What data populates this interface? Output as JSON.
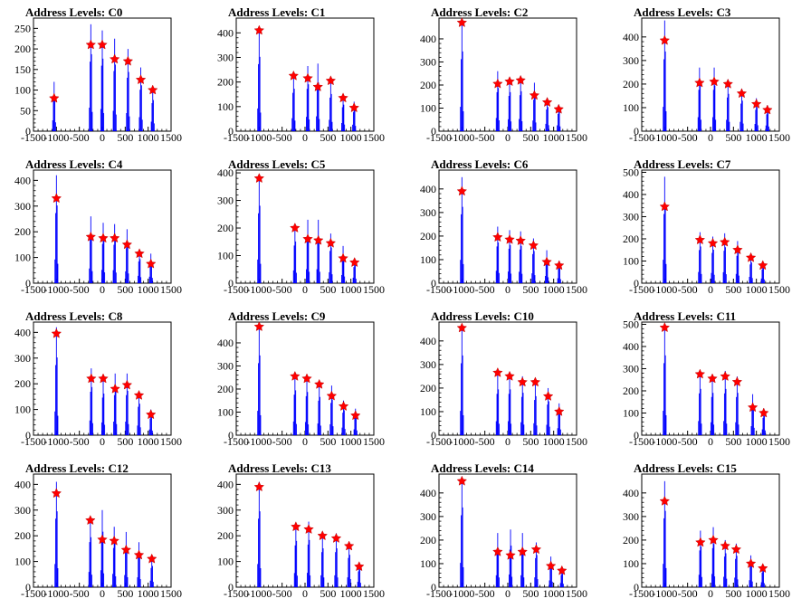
{
  "style": {
    "line_color": "#0000ff",
    "marker_color": "#ff0000",
    "frame_color": "#000000"
  },
  "chart_data": [
    {
      "type": "line",
      "title": "Address Levels: C0",
      "xlim": [
        -1500,
        1500
      ],
      "ylim": [
        0,
        275
      ],
      "xticks": [
        -1500,
        -1000,
        -500,
        0,
        500,
        1000,
        1500
      ],
      "yticks": [
        0,
        50,
        100,
        150,
        200,
        250
      ],
      "peaks": [
        {
          "x": -1050,
          "top": 120,
          "marker": 80
        },
        {
          "x": -250,
          "top": 260,
          "marker": 210
        },
        {
          "x": 0,
          "top": 245,
          "marker": 210
        },
        {
          "x": 270,
          "top": 225,
          "marker": 175
        },
        {
          "x": 560,
          "top": 200,
          "marker": 170
        },
        {
          "x": 840,
          "top": 155,
          "marker": 125
        },
        {
          "x": 1100,
          "top": 105,
          "marker": 100
        }
      ]
    },
    {
      "type": "line",
      "title": "Address Levels: C1",
      "xlim": [
        -1500,
        1500
      ],
      "ylim": [
        0,
        460
      ],
      "xticks": [
        -1500,
        -1000,
        -500,
        0,
        500,
        1000,
        1500
      ],
      "yticks": [
        0,
        100,
        200,
        300,
        400
      ],
      "peaks": [
        {
          "x": -1000,
          "top": 420,
          "marker": 410
        },
        {
          "x": -250,
          "top": 240,
          "marker": 225
        },
        {
          "x": 60,
          "top": 265,
          "marker": 215
        },
        {
          "x": 280,
          "top": 275,
          "marker": 180
        },
        {
          "x": 560,
          "top": 210,
          "marker": 205
        },
        {
          "x": 830,
          "top": 150,
          "marker": 135
        },
        {
          "x": 1070,
          "top": 120,
          "marker": 95
        }
      ]
    },
    {
      "type": "line",
      "title": "Address Levels: C2",
      "xlim": [
        -1500,
        1500
      ],
      "ylim": [
        0,
        490
      ],
      "xticks": [
        -1500,
        -1000,
        -500,
        0,
        500,
        1000,
        1500
      ],
      "yticks": [
        0,
        100,
        200,
        300,
        400
      ],
      "peaks": [
        {
          "x": -1000,
          "top": 480,
          "marker": 470
        },
        {
          "x": -220,
          "top": 260,
          "marker": 205
        },
        {
          "x": 40,
          "top": 235,
          "marker": 215
        },
        {
          "x": 280,
          "top": 240,
          "marker": 220
        },
        {
          "x": 580,
          "top": 210,
          "marker": 155
        },
        {
          "x": 860,
          "top": 145,
          "marker": 125
        },
        {
          "x": 1110,
          "top": 115,
          "marker": 95
        }
      ]
    },
    {
      "type": "line",
      "title": "Address Levels: C3",
      "xlim": [
        -1500,
        1500
      ],
      "ylim": [
        0,
        480
      ],
      "xticks": [
        -1500,
        -1000,
        -500,
        0,
        500,
        1000,
        1500
      ],
      "yticks": [
        0,
        100,
        200,
        300,
        400
      ],
      "peaks": [
        {
          "x": -1000,
          "top": 470,
          "marker": 385
        },
        {
          "x": -240,
          "top": 270,
          "marker": 205
        },
        {
          "x": 80,
          "top": 270,
          "marker": 210
        },
        {
          "x": 380,
          "top": 220,
          "marker": 200
        },
        {
          "x": 680,
          "top": 180,
          "marker": 160
        },
        {
          "x": 1000,
          "top": 140,
          "marker": 115
        },
        {
          "x": 1240,
          "top": 110,
          "marker": 90
        }
      ]
    },
    {
      "type": "line",
      "title": "Address Levels: C4",
      "xlim": [
        -1500,
        1500
      ],
      "ylim": [
        0,
        440
      ],
      "xticks": [
        -1500,
        -1000,
        -500,
        0,
        500,
        1000,
        1500
      ],
      "yticks": [
        0,
        100,
        200,
        300,
        400
      ],
      "peaks": [
        {
          "x": -1000,
          "top": 420,
          "marker": 330
        },
        {
          "x": -250,
          "top": 260,
          "marker": 180
        },
        {
          "x": 20,
          "top": 235,
          "marker": 175
        },
        {
          "x": 270,
          "top": 230,
          "marker": 175
        },
        {
          "x": 540,
          "top": 210,
          "marker": 150
        },
        {
          "x": 810,
          "top": 130,
          "marker": 115
        },
        {
          "x": 1060,
          "top": 115,
          "marker": 75
        }
      ]
    },
    {
      "type": "line",
      "title": "Address Levels: C5",
      "xlim": [
        -1500,
        1500
      ],
      "ylim": [
        0,
        410
      ],
      "xticks": [
        -1500,
        -1000,
        -500,
        0,
        500,
        1000,
        1500
      ],
      "yticks": [
        0,
        100,
        200,
        300,
        400
      ],
      "peaks": [
        {
          "x": -1000,
          "top": 390,
          "marker": 380
        },
        {
          "x": -220,
          "top": 210,
          "marker": 200
        },
        {
          "x": 60,
          "top": 230,
          "marker": 160
        },
        {
          "x": 290,
          "top": 230,
          "marker": 155
        },
        {
          "x": 560,
          "top": 180,
          "marker": 145
        },
        {
          "x": 830,
          "top": 135,
          "marker": 90
        },
        {
          "x": 1080,
          "top": 90,
          "marker": 75
        }
      ]
    },
    {
      "type": "line",
      "title": "Address Levels: C6",
      "xlim": [
        -1500,
        1500
      ],
      "ylim": [
        0,
        480
      ],
      "xticks": [
        -1500,
        -1000,
        -500,
        0,
        500,
        1000,
        1500
      ],
      "yticks": [
        0,
        100,
        200,
        300,
        400
      ],
      "peaks": [
        {
          "x": -1000,
          "top": 450,
          "marker": 390
        },
        {
          "x": -220,
          "top": 240,
          "marker": 195
        },
        {
          "x": 40,
          "top": 225,
          "marker": 185
        },
        {
          "x": 280,
          "top": 220,
          "marker": 180
        },
        {
          "x": 560,
          "top": 190,
          "marker": 160
        },
        {
          "x": 850,
          "top": 140,
          "marker": 90
        },
        {
          "x": 1120,
          "top": 95,
          "marker": 75
        }
      ]
    },
    {
      "type": "line",
      "title": "Address Levels: C7",
      "xlim": [
        -1500,
        1500
      ],
      "ylim": [
        0,
        510
      ],
      "xticks": [
        -1500,
        -1000,
        -500,
        0,
        500,
        1000,
        1500
      ],
      "yticks": [
        0,
        100,
        200,
        300,
        400,
        500
      ],
      "peaks": [
        {
          "x": -1000,
          "top": 480,
          "marker": 345
        },
        {
          "x": -230,
          "top": 230,
          "marker": 195
        },
        {
          "x": 50,
          "top": 210,
          "marker": 180
        },
        {
          "x": 310,
          "top": 225,
          "marker": 185
        },
        {
          "x": 590,
          "top": 190,
          "marker": 150
        },
        {
          "x": 880,
          "top": 130,
          "marker": 115
        },
        {
          "x": 1140,
          "top": 95,
          "marker": 80
        }
      ]
    },
    {
      "type": "line",
      "title": "Address Levels: C8",
      "xlim": [
        -1500,
        1500
      ],
      "ylim": [
        0,
        440
      ],
      "xticks": [
        -1500,
        -1000,
        -500,
        0,
        500,
        1000,
        1500
      ],
      "yticks": [
        0,
        100,
        200,
        300,
        400
      ],
      "peaks": [
        {
          "x": -1000,
          "top": 420,
          "marker": 395
        },
        {
          "x": -240,
          "top": 260,
          "marker": 220
        },
        {
          "x": 20,
          "top": 225,
          "marker": 220
        },
        {
          "x": 280,
          "top": 240,
          "marker": 180
        },
        {
          "x": 540,
          "top": 240,
          "marker": 195
        },
        {
          "x": 800,
          "top": 170,
          "marker": 155
        },
        {
          "x": 1060,
          "top": 100,
          "marker": 80
        }
      ]
    },
    {
      "type": "line",
      "title": "Address Levels: C9",
      "xlim": [
        -1500,
        1500
      ],
      "ylim": [
        0,
        490
      ],
      "xticks": [
        -1500,
        -1000,
        -500,
        0,
        500,
        1000,
        1500
      ],
      "yticks": [
        0,
        100,
        200,
        300,
        400
      ],
      "peaks": [
        {
          "x": -1000,
          "top": 480,
          "marker": 470
        },
        {
          "x": -220,
          "top": 270,
          "marker": 255
        },
        {
          "x": 40,
          "top": 260,
          "marker": 245
        },
        {
          "x": 310,
          "top": 230,
          "marker": 220
        },
        {
          "x": 580,
          "top": 215,
          "marker": 170
        },
        {
          "x": 840,
          "top": 150,
          "marker": 125
        },
        {
          "x": 1100,
          "top": 115,
          "marker": 85
        }
      ]
    },
    {
      "type": "line",
      "title": "Address Levels: C10",
      "xlim": [
        -1500,
        1500
      ],
      "ylim": [
        0,
        480
      ],
      "xticks": [
        -1500,
        -1000,
        -500,
        0,
        500,
        1000,
        1500
      ],
      "yticks": [
        0,
        100,
        200,
        300,
        400
      ],
      "peaks": [
        {
          "x": -1000,
          "top": 470,
          "marker": 455
        },
        {
          "x": -220,
          "top": 270,
          "marker": 265
        },
        {
          "x": 40,
          "top": 270,
          "marker": 250
        },
        {
          "x": 320,
          "top": 250,
          "marker": 225
        },
        {
          "x": 600,
          "top": 230,
          "marker": 225
        },
        {
          "x": 880,
          "top": 200,
          "marker": 165
        },
        {
          "x": 1120,
          "top": 135,
          "marker": 100
        }
      ]
    },
    {
      "type": "line",
      "title": "Address Levels: C11",
      "xlim": [
        -1500,
        1500
      ],
      "ylim": [
        0,
        510
      ],
      "xticks": [
        -1500,
        -1000,
        -500,
        0,
        500,
        1000,
        1500
      ],
      "yticks": [
        0,
        100,
        200,
        300,
        400,
        500
      ],
      "peaks": [
        {
          "x": -1000,
          "top": 500,
          "marker": 485
        },
        {
          "x": -230,
          "top": 290,
          "marker": 275
        },
        {
          "x": 40,
          "top": 265,
          "marker": 255
        },
        {
          "x": 320,
          "top": 290,
          "marker": 265
        },
        {
          "x": 580,
          "top": 265,
          "marker": 240
        },
        {
          "x": 920,
          "top": 185,
          "marker": 125
        },
        {
          "x": 1160,
          "top": 120,
          "marker": 100
        }
      ]
    },
    {
      "type": "line",
      "title": "Address Levels: C12",
      "xlim": [
        -1500,
        1500
      ],
      "ylim": [
        0,
        440
      ],
      "xticks": [
        -1500,
        -1000,
        -500,
        0,
        500,
        1000,
        1500
      ],
      "yticks": [
        0,
        100,
        200,
        300,
        400
      ],
      "peaks": [
        {
          "x": -1000,
          "top": 410,
          "marker": 365
        },
        {
          "x": -260,
          "top": 270,
          "marker": 260
        },
        {
          "x": 0,
          "top": 300,
          "marker": 185
        },
        {
          "x": 260,
          "top": 235,
          "marker": 180
        },
        {
          "x": 520,
          "top": 215,
          "marker": 145
        },
        {
          "x": 800,
          "top": 175,
          "marker": 125
        },
        {
          "x": 1080,
          "top": 115,
          "marker": 110
        }
      ]
    },
    {
      "type": "line",
      "title": "Address Levels: C13",
      "xlim": [
        -1500,
        1500
      ],
      "ylim": [
        0,
        440
      ],
      "xticks": [
        -1500,
        -1000,
        -500,
        0,
        500,
        1000,
        1500
      ],
      "yticks": [
        0,
        100,
        200,
        300,
        400
      ],
      "peaks": [
        {
          "x": -1000,
          "top": 410,
          "marker": 390
        },
        {
          "x": -200,
          "top": 250,
          "marker": 235
        },
        {
          "x": 80,
          "top": 255,
          "marker": 225
        },
        {
          "x": 380,
          "top": 210,
          "marker": 200
        },
        {
          "x": 680,
          "top": 210,
          "marker": 190
        },
        {
          "x": 960,
          "top": 175,
          "marker": 160
        },
        {
          "x": 1180,
          "top": 95,
          "marker": 80
        }
      ]
    },
    {
      "type": "line",
      "title": "Address Levels: C14",
      "xlim": [
        -1500,
        1500
      ],
      "ylim": [
        0,
        480
      ],
      "xticks": [
        -1500,
        -1000,
        -500,
        0,
        500,
        1000,
        1500
      ],
      "yticks": [
        0,
        100,
        200,
        300,
        400
      ],
      "peaks": [
        {
          "x": -1000,
          "top": 470,
          "marker": 450
        },
        {
          "x": -220,
          "top": 230,
          "marker": 150
        },
        {
          "x": 60,
          "top": 245,
          "marker": 135
        },
        {
          "x": 320,
          "top": 230,
          "marker": 150
        },
        {
          "x": 620,
          "top": 190,
          "marker": 160
        },
        {
          "x": 940,
          "top": 130,
          "marker": 90
        },
        {
          "x": 1180,
          "top": 80,
          "marker": 70
        }
      ]
    },
    {
      "type": "line",
      "title": "Address Levels: C15",
      "xlim": [
        -1500,
        1500
      ],
      "ylim": [
        0,
        480
      ],
      "xticks": [
        -1500,
        -1000,
        -500,
        0,
        500,
        1000,
        1500
      ],
      "yticks": [
        0,
        100,
        200,
        300,
        400
      ],
      "peaks": [
        {
          "x": -1000,
          "top": 450,
          "marker": 365
        },
        {
          "x": -220,
          "top": 240,
          "marker": 190
        },
        {
          "x": 60,
          "top": 255,
          "marker": 200
        },
        {
          "x": 320,
          "top": 200,
          "marker": 175
        },
        {
          "x": 560,
          "top": 185,
          "marker": 160
        },
        {
          "x": 880,
          "top": 135,
          "marker": 100
        },
        {
          "x": 1140,
          "top": 95,
          "marker": 80
        }
      ]
    }
  ]
}
